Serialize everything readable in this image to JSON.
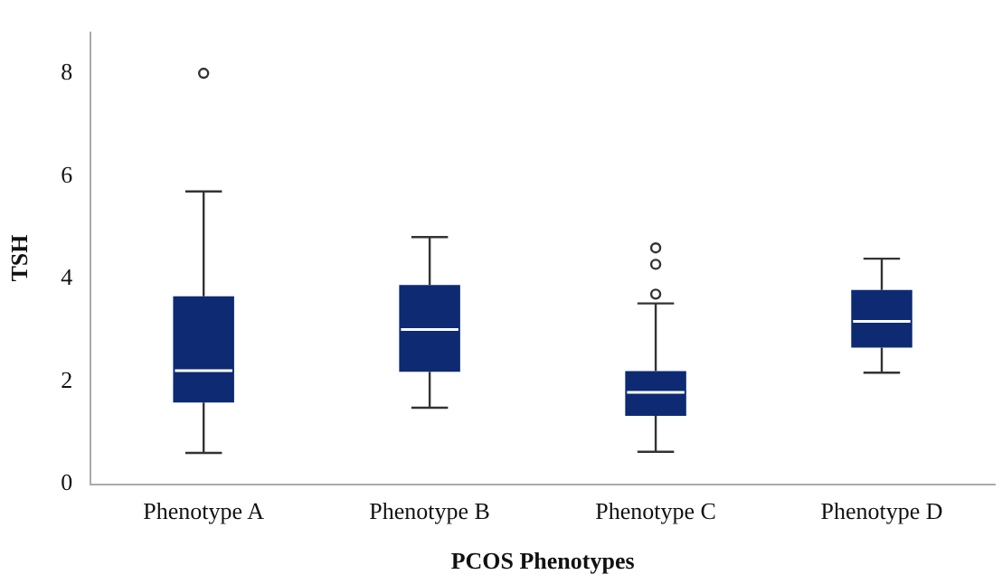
{
  "chart_data": {
    "type": "box",
    "xlabel": "PCOS Phenotypes",
    "ylabel": "TSH",
    "categories": [
      "Phenotype A",
      "Phenotype B",
      "Phenotype C",
      "Phenotype D"
    ],
    "color": "#0d2a73",
    "ylim": [
      0,
      8.8
    ],
    "yticks": [
      0,
      2,
      4,
      6,
      8
    ],
    "grid": false,
    "legend": false,
    "boxes": [
      {
        "low": 0.61,
        "q1": 1.59,
        "median": 2.21,
        "q3": 3.66,
        "high": 5.7,
        "outliers": [
          8.0
        ]
      },
      {
        "low": 1.49,
        "q1": 2.19,
        "median": 3.01,
        "q3": 3.88,
        "high": 4.81
      },
      {
        "low": 0.63,
        "q1": 1.33,
        "median": 1.79,
        "q3": 2.2,
        "high": 3.52,
        "outliers": [
          3.7,
          4.28,
          4.6
        ]
      },
      {
        "low": 2.17,
        "q1": 2.66,
        "median": 3.17,
        "q3": 3.78,
        "high": 4.39
      }
    ]
  }
}
